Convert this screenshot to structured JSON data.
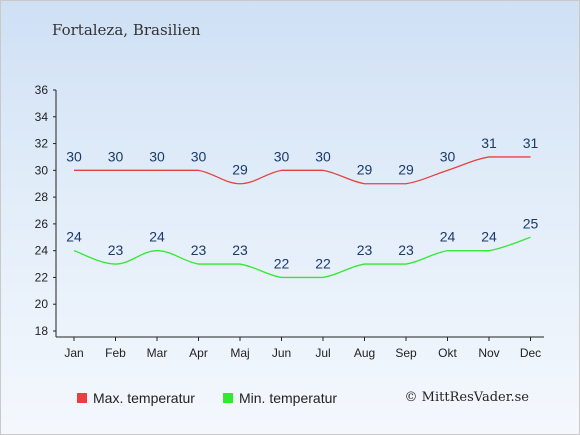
{
  "title": "Fortaleza, Brasilien",
  "copyright": "© MittResVader.se",
  "colors": {
    "max": "#e84040",
    "min": "#33e833",
    "axis": "#222222",
    "label": "#1a3a6a"
  },
  "chart_data": {
    "type": "line",
    "categories": [
      "Jan",
      "Feb",
      "Mar",
      "Apr",
      "Maj",
      "Jun",
      "Jul",
      "Aug",
      "Sep",
      "Okt",
      "Nov",
      "Dec"
    ],
    "series": [
      {
        "name": "Max. temperatur",
        "values": [
          30,
          30,
          30,
          30,
          29,
          30,
          30,
          29,
          29,
          30,
          31,
          31
        ]
      },
      {
        "name": "Min. temperatur",
        "values": [
          24,
          23,
          24,
          23,
          23,
          22,
          22,
          23,
          23,
          24,
          24,
          25
        ]
      }
    ],
    "ylim": [
      18,
      36
    ],
    "yticks": [
      18,
      20,
      22,
      24,
      26,
      28,
      30,
      32,
      34,
      36
    ],
    "grid": false,
    "legend": "bottom-left"
  }
}
